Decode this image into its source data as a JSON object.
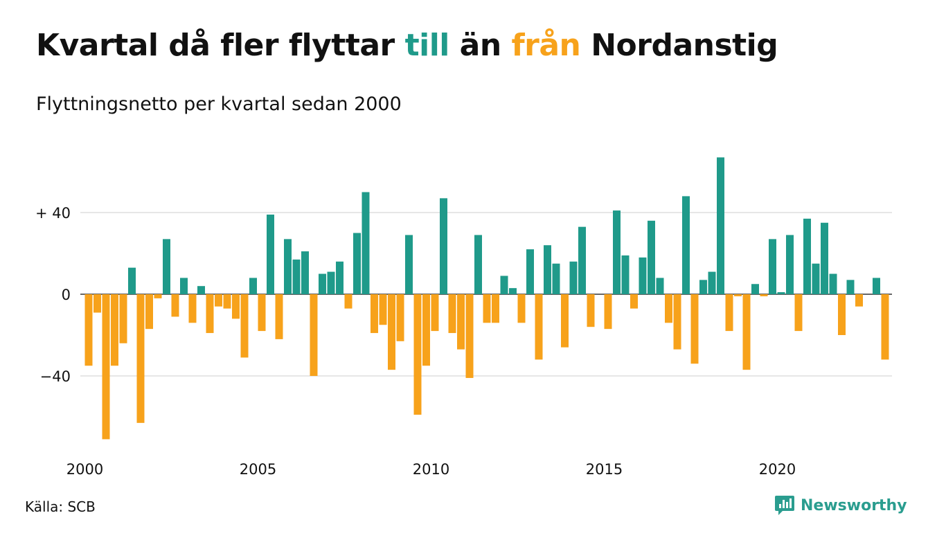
{
  "title": {
    "part1": "Kvartal då fler flyttar ",
    "till": "till",
    "part2": " än ",
    "fran": "från",
    "part3": " Nordanstig"
  },
  "subtitle": "Flyttningsnetto per kvartal sedan 2000",
  "source": "Källa: SCB",
  "brand": "Newsworthy",
  "colors": {
    "positive": "#1f9a8a",
    "negative": "#f7a21b",
    "grid": "#dddddd",
    "text": "#111111"
  },
  "chart_data": {
    "type": "bar",
    "x_start": "2000 Q1",
    "ylim": [
      -72,
      68
    ],
    "yticks": [
      40,
      0,
      -40
    ],
    "ytick_labels": [
      "+ 40",
      "0",
      "−40"
    ],
    "xtick_labels": [
      "2000",
      "2005",
      "2010",
      "2015",
      "2020"
    ],
    "grid": true,
    "values": [
      -35,
      -9,
      -71,
      -35,
      -24,
      13,
      -63,
      -17,
      -2,
      27,
      -11,
      8,
      -14,
      4,
      -19,
      -6,
      -7,
      -12,
      -31,
      8,
      -18,
      39,
      -22,
      27,
      17,
      21,
      -40,
      10,
      11,
      16,
      -7,
      30,
      50,
      -19,
      -15,
      -37,
      -23,
      29,
      -59,
      -35,
      -18,
      47,
      -19,
      -27,
      -41,
      29,
      -14,
      -14,
      9,
      3,
      -14,
      22,
      -32,
      24,
      15,
      -26,
      16,
      33,
      -16,
      0,
      -17,
      41,
      19,
      -7,
      18,
      36,
      8,
      -14,
      -27,
      48,
      -34,
      7,
      11,
      67,
      -18,
      -1,
      -37,
      5,
      -1,
      27,
      1,
      29,
      -18,
      37,
      15,
      35,
      10,
      -20,
      7,
      -6,
      0,
      8,
      -32
    ]
  }
}
